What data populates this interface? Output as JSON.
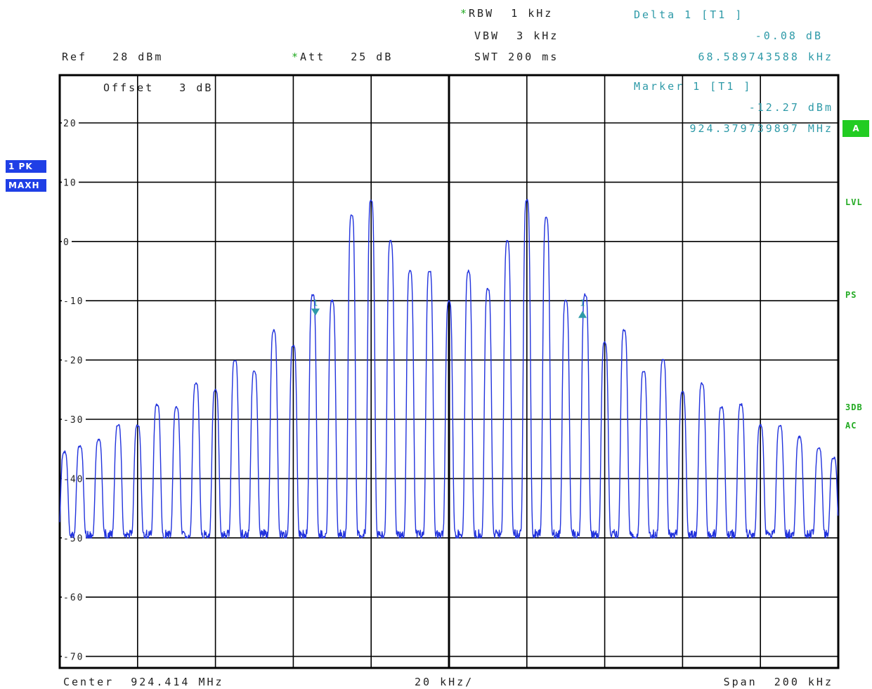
{
  "header": {
    "rbw_label": "RBW",
    "rbw_value": "1 kHz",
    "vbw_label": "VBW",
    "vbw_value": "3 kHz",
    "swt_label": "SWT",
    "swt_value": "200 ms",
    "ref_label": "Ref",
    "ref_value": "28 dBm",
    "att_label": "Att",
    "att_value": "25 dB",
    "star": "*"
  },
  "delta": {
    "title": "Delta 1 [T1 ]",
    "level": "-0.08 dB",
    "freq": "68.589743588 kHz"
  },
  "marker": {
    "title": "Marker 1 [T1 ]",
    "level": "-12.27 dBm",
    "freq": "924.379739897 MHz"
  },
  "offset_label": "Offset   3 dB",
  "trace_badges": [
    "1 PK",
    "MAXH"
  ],
  "side_labels": {
    "a": "A",
    "lvl": "LVL",
    "ps": "PS",
    "db3": "3DB",
    "ac": "AC"
  },
  "footer": {
    "center": "Center  924.414 MHz",
    "div": "20 kHz/",
    "span": "Span  200 kHz"
  },
  "colors": {
    "trace": "#2233dd",
    "marker": "#2e9aa8",
    "grid": "#000000",
    "status_green": "#22cc22"
  },
  "chart_data": {
    "type": "line",
    "title": "",
    "xlabel": "",
    "ylabel": "",
    "center_mhz": 924.414,
    "span_khz": 200,
    "xlim_khz": [
      -100,
      100
    ],
    "ylim": [
      -72,
      28
    ],
    "y_ticks": [
      20,
      10,
      0,
      -10,
      -20,
      -30,
      -40,
      -50,
      -60,
      -70
    ],
    "grid": true,
    "noise_floor_dbm": -50,
    "series": [
      {
        "x_khz": [
          -98.8,
          -94.8,
          -90.0,
          -85.0,
          -80.0,
          -75.0,
          -70.0,
          -65.0,
          -60.0,
          -55.0,
          -50.0,
          -45.0,
          -40.0,
          -35.0,
          -30.0,
          -25.0,
          -20.0,
          -15.0,
          -10.0,
          -5.0,
          0.0,
          5.0,
          10.0,
          15.0,
          20.0,
          25.0,
          30.0,
          35.0,
          40.0,
          45.0,
          50.0,
          55.0,
          60.0,
          65.0,
          70.0,
          75.0,
          80.0,
          85.0,
          90.0,
          95.0,
          98.8
        ],
        "peak_dbm": [
          -35.5,
          -34.5,
          -33.5,
          -31.0,
          -31.0,
          -27.5,
          -28.0,
          -24.0,
          -25.0,
          -20.0,
          -22.0,
          -15.0,
          -17.5,
          -9.0,
          -10.0,
          4.5,
          7.0,
          0.0,
          -5.0,
          -5.0,
          -10.0,
          -5.0,
          -8.0,
          0.0,
          7.0,
          4.0,
          -10.0,
          -9.0,
          -17.0,
          -15.0,
          -22.0,
          -20.0,
          -25.5,
          -24.0,
          -28.0,
          -27.5,
          -31.0,
          -31.0,
          -33.0,
          -35.0,
          -36.5
        ]
      }
    ],
    "markers": [
      {
        "name": "1",
        "x_khz": -34.3,
        "level_dbm": -12.27
      },
      {
        "name": "1",
        "x_khz": 34.3,
        "level_dbm": -12.3
      }
    ]
  }
}
